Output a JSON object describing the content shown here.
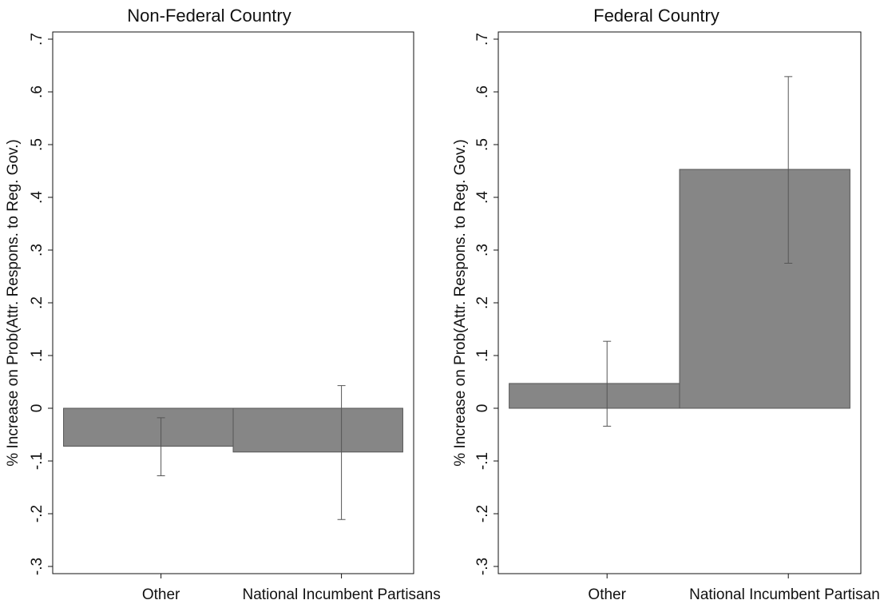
{
  "chart_data": [
    {
      "type": "bar",
      "title": "Non-Federal Country",
      "ylabel": "% Increase on Prob(Attr. Respons. to Reg. Gov.)",
      "xlabel": "",
      "categories": [
        "Other",
        "National Incumbent Partisans"
      ],
      "values": [
        -0.072,
        -0.083
      ],
      "ci_low": [
        -0.128,
        -0.211
      ],
      "ci_high": [
        -0.018,
        0.043
      ],
      "ylim": [
        -0.3,
        0.7
      ],
      "yticks": [
        -0.3,
        -0.2,
        -0.1,
        0,
        0.1,
        0.2,
        0.3,
        0.4,
        0.5,
        0.6,
        0.7
      ],
      "ytick_labels": [
        "-.3",
        "-.2",
        "-.1",
        "0",
        ".1",
        ".2",
        ".3",
        ".4",
        ".5",
        ".6",
        ".7"
      ],
      "bar_color": "#868686",
      "grid": false
    },
    {
      "type": "bar",
      "title": "Federal Country",
      "ylabel": "% Increase on Prob(Attr. Respons. to Reg. Gov.)",
      "xlabel": "",
      "categories": [
        "Other",
        "National Incumbent Partisans"
      ],
      "values": [
        0.047,
        0.453
      ],
      "ci_low": [
        -0.034,
        0.275
      ],
      "ci_high": [
        0.127,
        0.629
      ],
      "ylim": [
        -0.3,
        0.7
      ],
      "yticks": [
        -0.3,
        -0.2,
        -0.1,
        0,
        0.1,
        0.2,
        0.3,
        0.4,
        0.5,
        0.6,
        0.7
      ],
      "ytick_labels": [
        "-.3",
        "-.2",
        "-.1",
        "0",
        ".1",
        ".2",
        ".3",
        ".4",
        ".5",
        ".6",
        ".7"
      ],
      "bar_color": "#868686",
      "grid": false
    }
  ]
}
